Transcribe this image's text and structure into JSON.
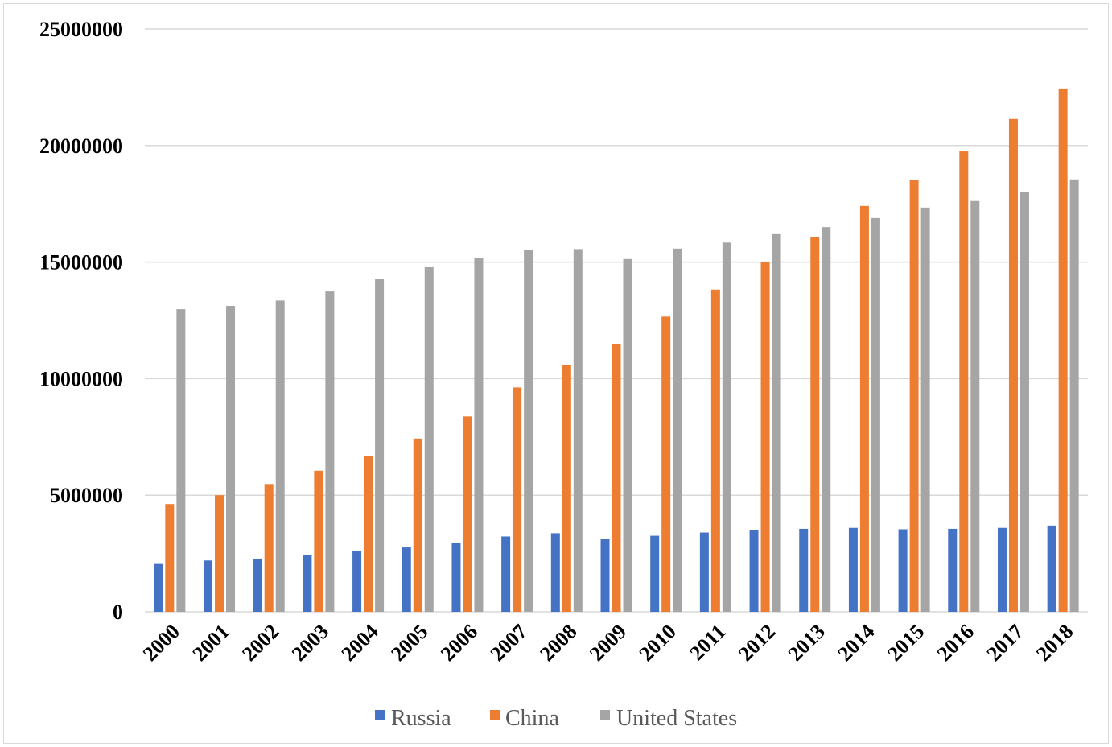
{
  "chart_data": {
    "type": "bar",
    "title": "",
    "xlabel": "",
    "ylabel": "",
    "ylim": [
      0,
      25000000
    ],
    "yticks": [
      "0",
      "5000000",
      "10000000",
      "15000000",
      "20000000",
      "25000000"
    ],
    "ytick_values": [
      0,
      5000000,
      10000000,
      15000000,
      20000000,
      25000000
    ],
    "grid": true,
    "legend_position": "bottom",
    "categories": [
      "2000",
      "2001",
      "2002",
      "2003",
      "2004",
      "2005",
      "2006",
      "2007",
      "2008",
      "2009",
      "2010",
      "2011",
      "2012",
      "2013",
      "2014",
      "2015",
      "2016",
      "2017",
      "2018"
    ],
    "series": [
      {
        "name": "Russia",
        "color": "#4472c4",
        "values": [
          2050000,
          2200000,
          2280000,
          2420000,
          2600000,
          2760000,
          2970000,
          3230000,
          3370000,
          3120000,
          3260000,
          3400000,
          3520000,
          3560000,
          3600000,
          3540000,
          3560000,
          3600000,
          3700000
        ]
      },
      {
        "name": "China",
        "color": "#ed7d31",
        "values": [
          4620000,
          5000000,
          5480000,
          6050000,
          6680000,
          7430000,
          8380000,
          9620000,
          10580000,
          11500000,
          12660000,
          13820000,
          15010000,
          16080000,
          17410000,
          18520000,
          19750000,
          21140000,
          22450000
        ]
      },
      {
        "name": "United States",
        "color": "#a5a5a5",
        "values": [
          12980000,
          13120000,
          13350000,
          13740000,
          14290000,
          14780000,
          15180000,
          15520000,
          15560000,
          15130000,
          15580000,
          15840000,
          16200000,
          16500000,
          16890000,
          17340000,
          17620000,
          18000000,
          18550000
        ]
      }
    ]
  }
}
